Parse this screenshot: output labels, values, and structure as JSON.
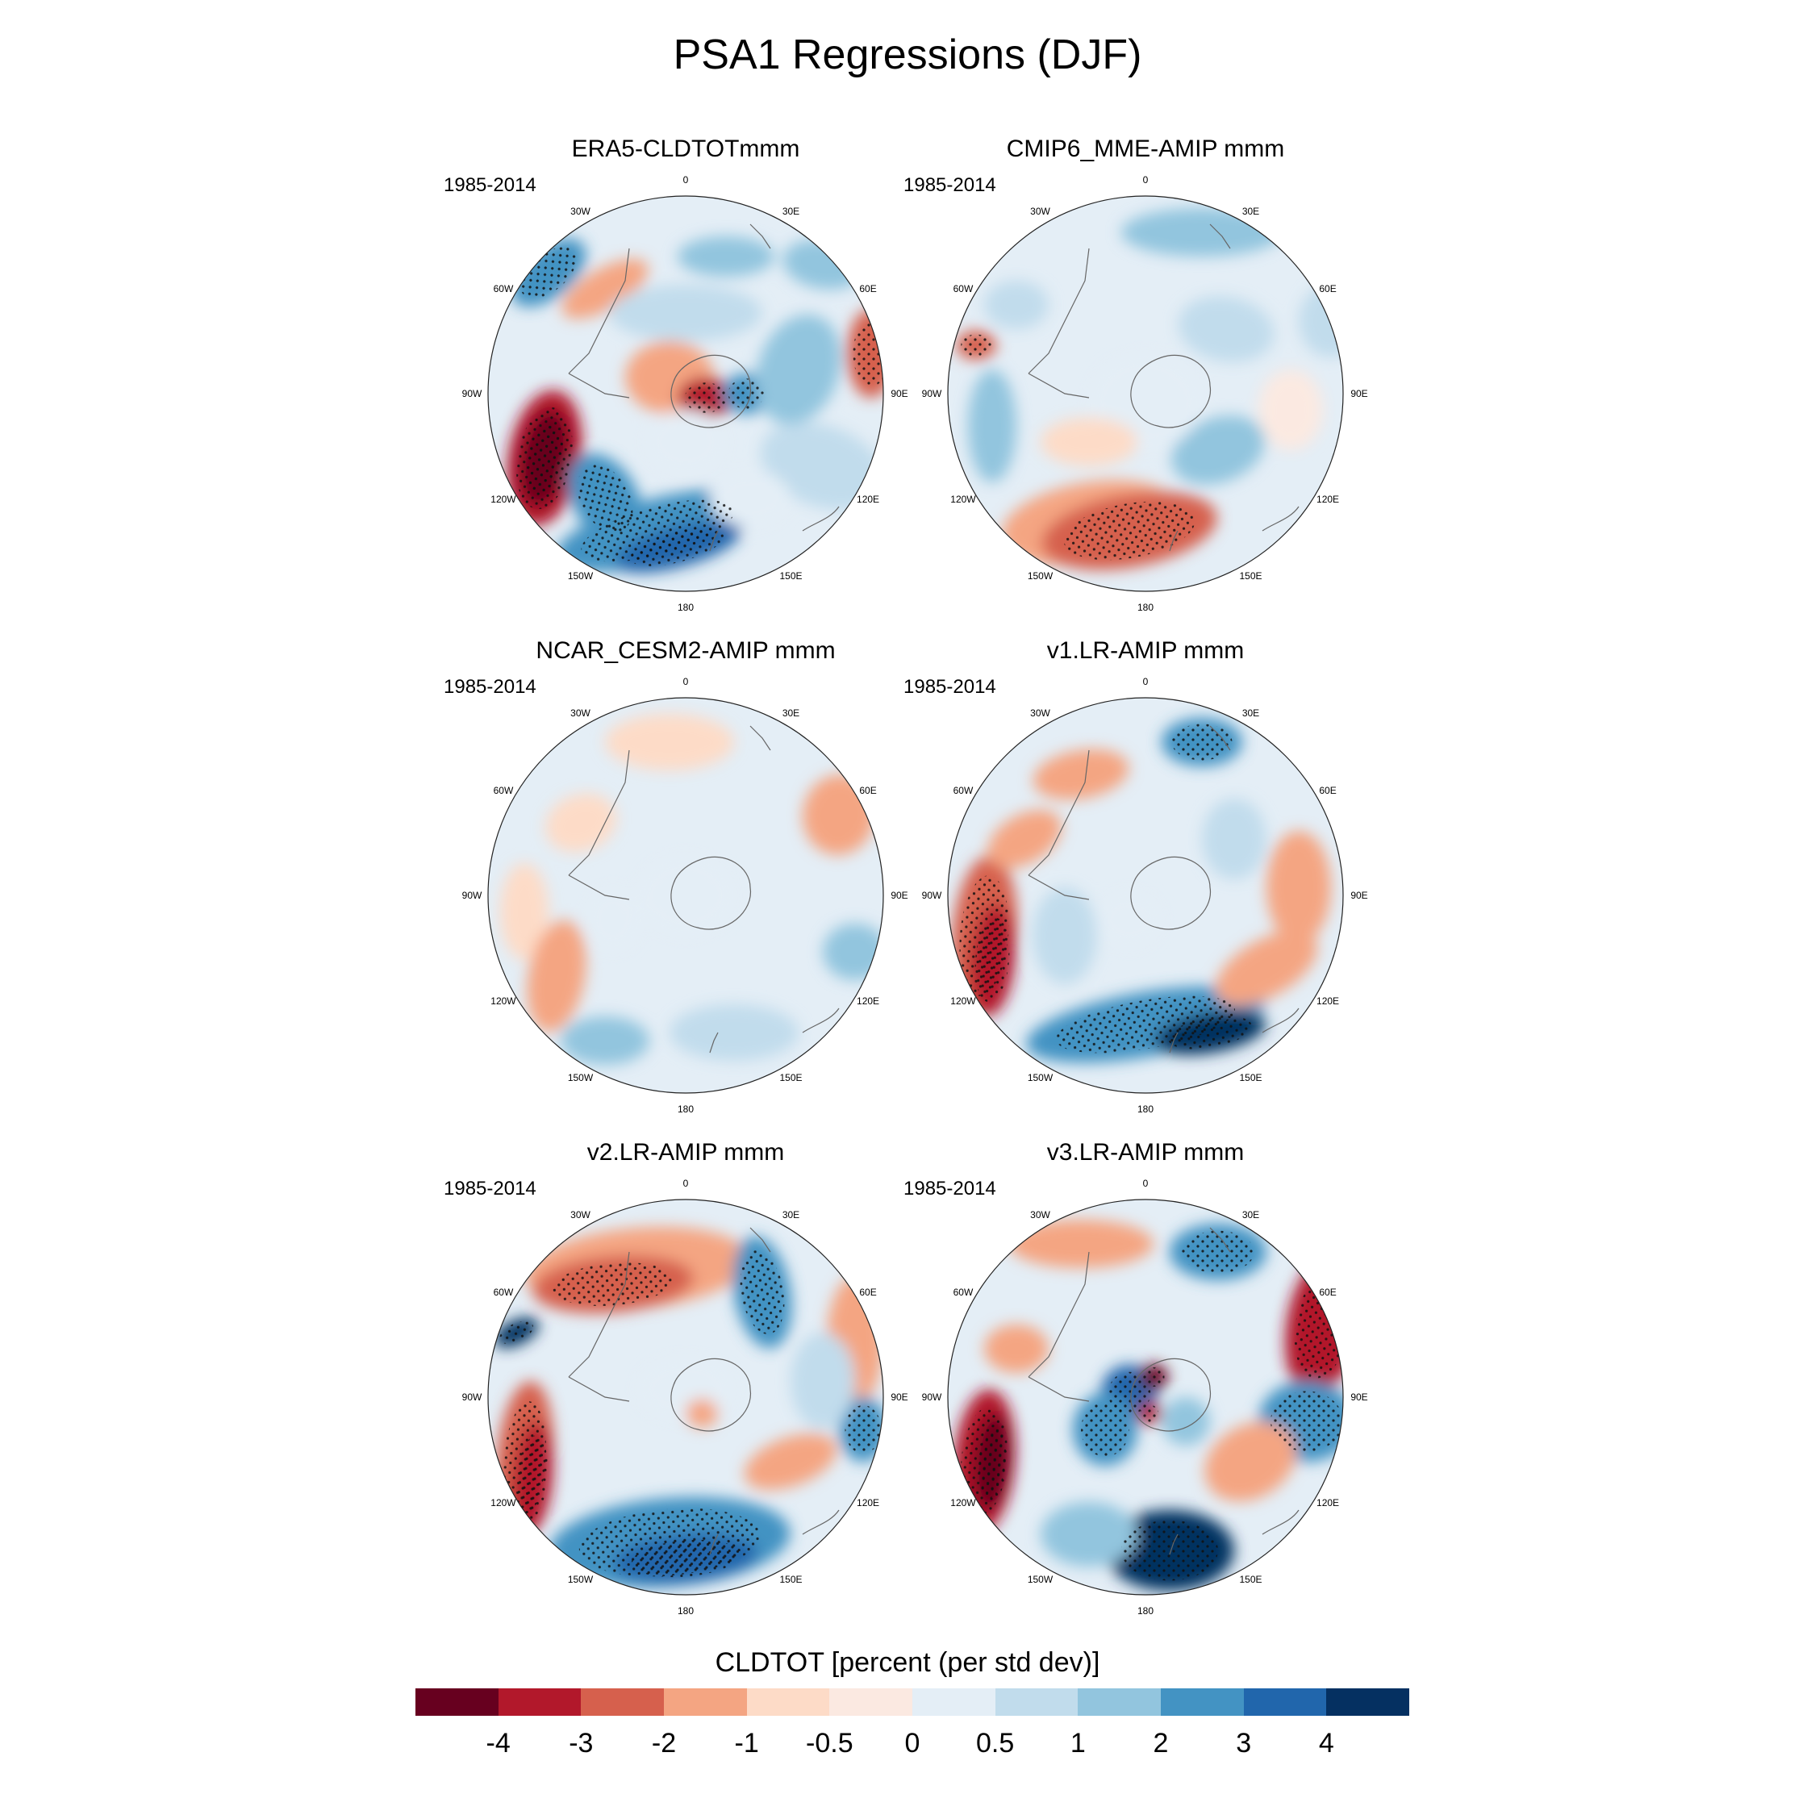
{
  "title": "PSA1 Regressions (DJF)",
  "colorbar": {
    "title": "CLDTOT [percent (per std dev)]",
    "labels": [
      "-4",
      "-3",
      "-2",
      "-1",
      "-0.5",
      "0",
      "0.5",
      "1",
      "2",
      "3",
      "4"
    ],
    "colors": [
      "#67001f",
      "#b2182b",
      "#d6604d",
      "#f4a582",
      "#fddbc7",
      "#fbe9e1",
      "#e4eef6",
      "#c1dcec",
      "#92c5de",
      "#4393c3",
      "#2166ac",
      "#053061"
    ]
  },
  "lon_labels": [
    "0",
    "30E",
    "60E",
    "90E",
    "120E",
    "150E",
    "180",
    "150W",
    "120W",
    "90W",
    "60W",
    "30W"
  ],
  "panels": [
    {
      "title": "ERA5-CLDTOTmmm",
      "period": "1985-2014"
    },
    {
      "title": "CMIP6_MME-AMIP  mmm",
      "period": "1985-2014"
    },
    {
      "title": "NCAR_CESM2-AMIP  mmm",
      "period": "1985-2014"
    },
    {
      "title": "v1.LR-AMIP  mmm",
      "period": "1985-2014"
    },
    {
      "title": "v2.LR-AMIP  mmm",
      "period": "1985-2014"
    },
    {
      "title": "v3.LR-AMIP  mmm",
      "period": "1985-2014"
    }
  ]
}
